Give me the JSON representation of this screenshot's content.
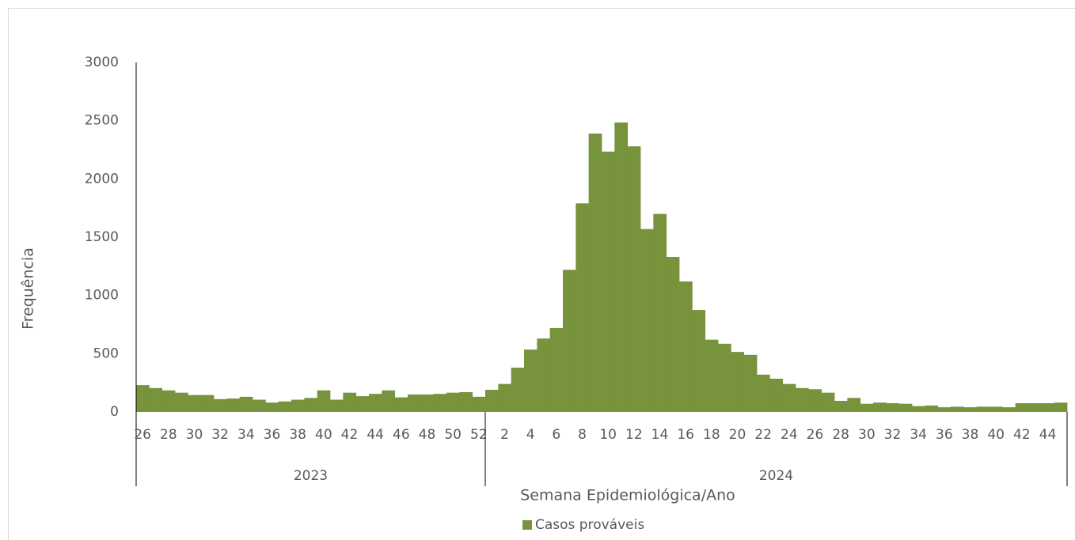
{
  "chart_data": {
    "type": "bar",
    "y_label": "Frequência",
    "x_label": "Semana Epidemiológica/Ano",
    "groups": [
      {
        "name": "2023",
        "categories": [
          "26",
          null,
          "28",
          null,
          "30",
          null,
          "32",
          null,
          "34",
          null,
          "36",
          null,
          "38",
          null,
          "40",
          null,
          "42",
          null,
          "44",
          null,
          "46",
          null,
          "48",
          null,
          "50",
          null,
          "52"
        ]
      },
      {
        "name": "2024",
        "categories": [
          null,
          "2",
          null,
          "4",
          null,
          "6",
          null,
          "8",
          null,
          "10",
          null,
          "12",
          null,
          "14",
          null,
          "16",
          null,
          "18",
          null,
          "20",
          null,
          "22",
          null,
          "24",
          null,
          "26",
          null,
          "28",
          null,
          "30",
          null,
          "32",
          null,
          "34",
          null,
          "36",
          null,
          "38",
          null,
          "40",
          null,
          "42",
          null,
          "44",
          null
        ]
      }
    ],
    "series": [
      {
        "name": "Casos prováveis",
        "color": "#77933c",
        "values": [
          230,
          205,
          185,
          165,
          145,
          145,
          110,
          115,
          130,
          105,
          80,
          90,
          105,
          120,
          185,
          105,
          165,
          135,
          155,
          185,
          125,
          150,
          150,
          155,
          165,
          170,
          130,
          190,
          240,
          380,
          535,
          630,
          720,
          1220,
          1790,
          2390,
          2235,
          2485,
          2280,
          1570,
          1700,
          1330,
          1120,
          875,
          620,
          585,
          515,
          490,
          320,
          285,
          240,
          205,
          195,
          165,
          95,
          120,
          70,
          80,
          75,
          70,
          50,
          55,
          40,
          45,
          40,
          45,
          45,
          40,
          75,
          75,
          75,
          80
        ]
      }
    ],
    "ylim": [
      0,
      3000
    ],
    "yticks": [
      0,
      500,
      1000,
      1500,
      2000,
      2500,
      3000
    ],
    "legend": "bottom"
  }
}
